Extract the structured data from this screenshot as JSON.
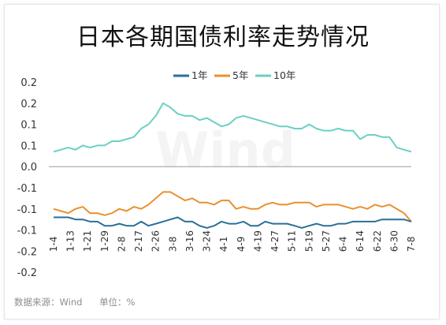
{
  "title": "日本各期国债利率走势情况",
  "source": {
    "source_text": "数据来源：Wind",
    "unit_text": "单位：%"
  },
  "watermark": "Wind",
  "colors": {
    "1年": "#2a6f97",
    "5年": "#e8912f",
    "10年": "#6ccfc4",
    "zero_line": "#9a9a9a",
    "axis_text": "#333333"
  },
  "chart_data": {
    "type": "line",
    "title": "日本各期国债利率走势情况",
    "xlabel": "",
    "ylabel": "",
    "ylim": [
      -0.2,
      0.2
    ],
    "y_tick_labels": [
      "0.2",
      "0.2",
      "0.1",
      "0.1",
      "0.0",
      "-0.1",
      "-0.1",
      "-0.1",
      "-0.2",
      "-0.2"
    ],
    "y_tick_values": [
      0.2,
      0.15,
      0.1,
      0.05,
      0.0,
      -0.05,
      -0.1,
      -0.15,
      -0.2,
      -0.25
    ],
    "x_tick_labels": [
      "1-4",
      "1-13",
      "1-21",
      "1-29",
      "2-8",
      "2-17",
      "2-26",
      "3-8",
      "3-16",
      "3-24",
      "4-1",
      "4-9",
      "4-19",
      "4-27",
      "5-11",
      "5-19",
      "5-27",
      "6-4",
      "6-14",
      "6-22",
      "6-30",
      "7-8"
    ],
    "legend": {
      "position": "top",
      "entries": [
        "1年",
        "5年",
        "10年"
      ]
    },
    "grid": false,
    "series": [
      {
        "name": "1年",
        "values": [
          -0.12,
          -0.12,
          -0.12,
          -0.125,
          -0.125,
          -0.13,
          -0.13,
          -0.14,
          -0.14,
          -0.135,
          -0.14,
          -0.14,
          -0.13,
          -0.14,
          -0.135,
          -0.13,
          -0.125,
          -0.12,
          -0.13,
          -0.13,
          -0.14,
          -0.145,
          -0.14,
          -0.13,
          -0.135,
          -0.135,
          -0.13,
          -0.14,
          -0.14,
          -0.13,
          -0.135,
          -0.135,
          -0.135,
          -0.14,
          -0.145,
          -0.14,
          -0.135,
          -0.14,
          -0.14,
          -0.135,
          -0.135,
          -0.13,
          -0.13,
          -0.13,
          -0.13,
          -0.125,
          -0.125,
          -0.125,
          -0.125,
          -0.13
        ]
      },
      {
        "name": "5年",
        "values": [
          -0.1,
          -0.105,
          -0.11,
          -0.1,
          -0.095,
          -0.11,
          -0.11,
          -0.115,
          -0.11,
          -0.1,
          -0.105,
          -0.095,
          -0.1,
          -0.09,
          -0.075,
          -0.06,
          -0.06,
          -0.07,
          -0.08,
          -0.075,
          -0.085,
          -0.085,
          -0.09,
          -0.08,
          -0.08,
          -0.1,
          -0.095,
          -0.1,
          -0.1,
          -0.09,
          -0.085,
          -0.09,
          -0.09,
          -0.085,
          -0.085,
          -0.085,
          -0.095,
          -0.09,
          -0.09,
          -0.09,
          -0.095,
          -0.1,
          -0.095,
          -0.1,
          -0.09,
          -0.095,
          -0.09,
          -0.1,
          -0.11,
          -0.13
        ]
      },
      {
        "name": "10年",
        "values": [
          0.035,
          0.04,
          0.045,
          0.04,
          0.05,
          0.045,
          0.05,
          0.05,
          0.06,
          0.06,
          0.065,
          0.07,
          0.09,
          0.1,
          0.12,
          0.15,
          0.14,
          0.125,
          0.12,
          0.12,
          0.11,
          0.115,
          0.105,
          0.095,
          0.1,
          0.115,
          0.12,
          0.115,
          0.11,
          0.105,
          0.1,
          0.095,
          0.095,
          0.09,
          0.09,
          0.1,
          0.09,
          0.085,
          0.085,
          0.09,
          0.085,
          0.085,
          0.065,
          0.075,
          0.075,
          0.07,
          0.07,
          0.045,
          0.04,
          0.035
        ]
      }
    ]
  }
}
